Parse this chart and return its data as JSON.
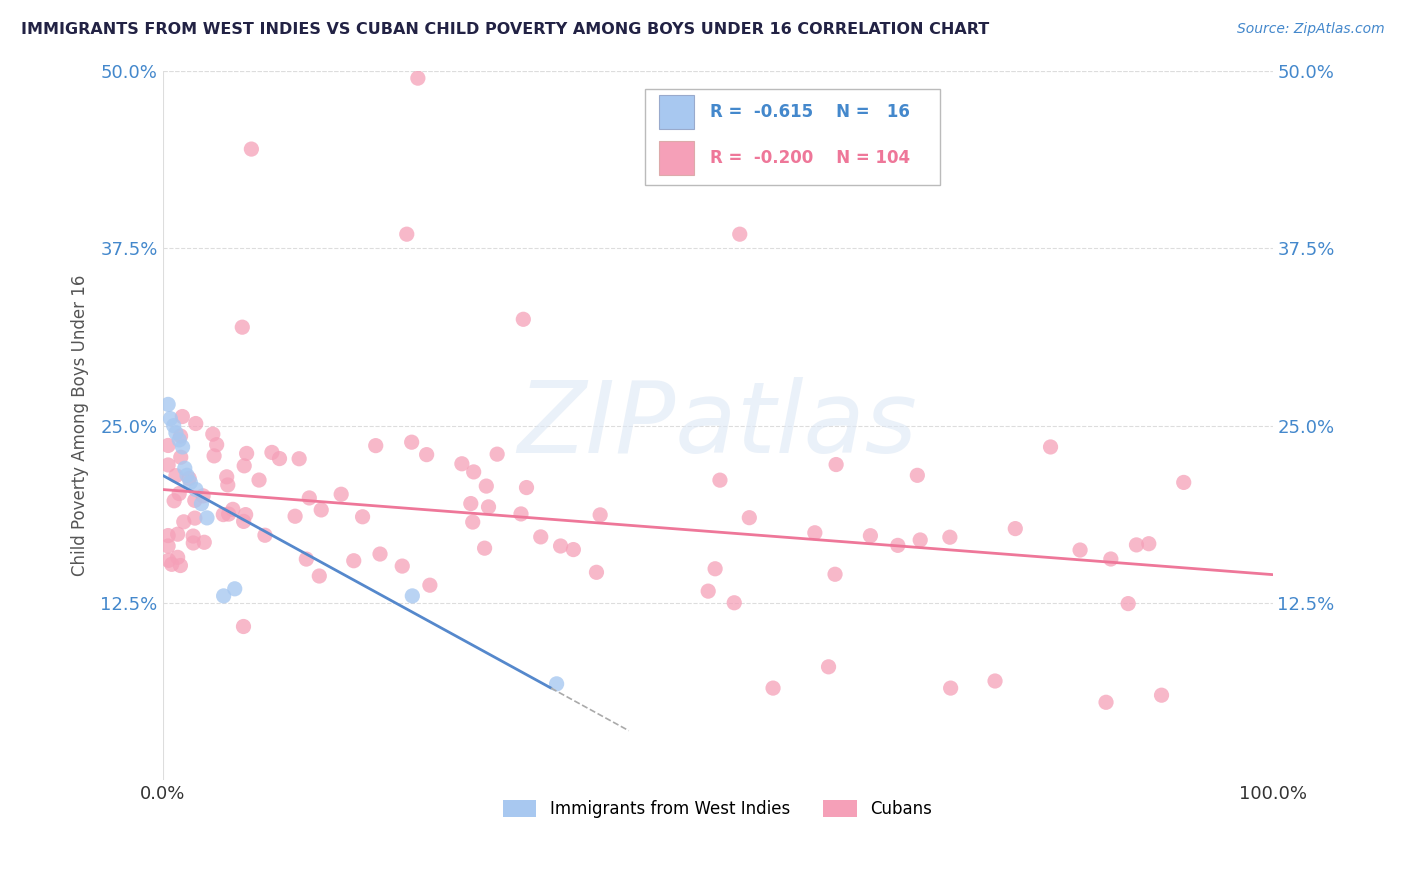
{
  "title": "IMMIGRANTS FROM WEST INDIES VS CUBAN CHILD POVERTY AMONG BOYS UNDER 16 CORRELATION CHART",
  "source": "Source: ZipAtlas.com",
  "ylabel": "Child Poverty Among Boys Under 16",
  "xlim": [
    0,
    1.0
  ],
  "ylim": [
    0,
    0.5
  ],
  "ytick_values": [
    0,
    0.125,
    0.25,
    0.375,
    0.5
  ],
  "ytick_labels": [
    "",
    "12.5%",
    "25.0%",
    "37.5%",
    "50.0%"
  ],
  "xtick_values": [
    0,
    1.0
  ],
  "xtick_labels": [
    "0.0%",
    "100.0%"
  ],
  "watermark_text": "ZIPatlas",
  "legend_label1": "Immigrants from West Indies",
  "legend_label2": "Cubans",
  "blue_color": "#a8c8f0",
  "pink_color": "#f5a0b8",
  "blue_line_color": "#5588cc",
  "pink_line_color": "#ee7799",
  "axis_color": "#4488cc",
  "title_color": "#222244",
  "source_color": "#4488cc",
  "grid_color": "#dddddd",
  "ylabel_color": "#555555",
  "blue_trend_x0": 0.0,
  "blue_trend_y0": 0.215,
  "blue_trend_x1": 0.35,
  "blue_trend_y1": 0.065,
  "pink_trend_x0": 0.0,
  "pink_trend_y0": 0.205,
  "pink_trend_x1": 1.0,
  "pink_trend_y1": 0.145
}
